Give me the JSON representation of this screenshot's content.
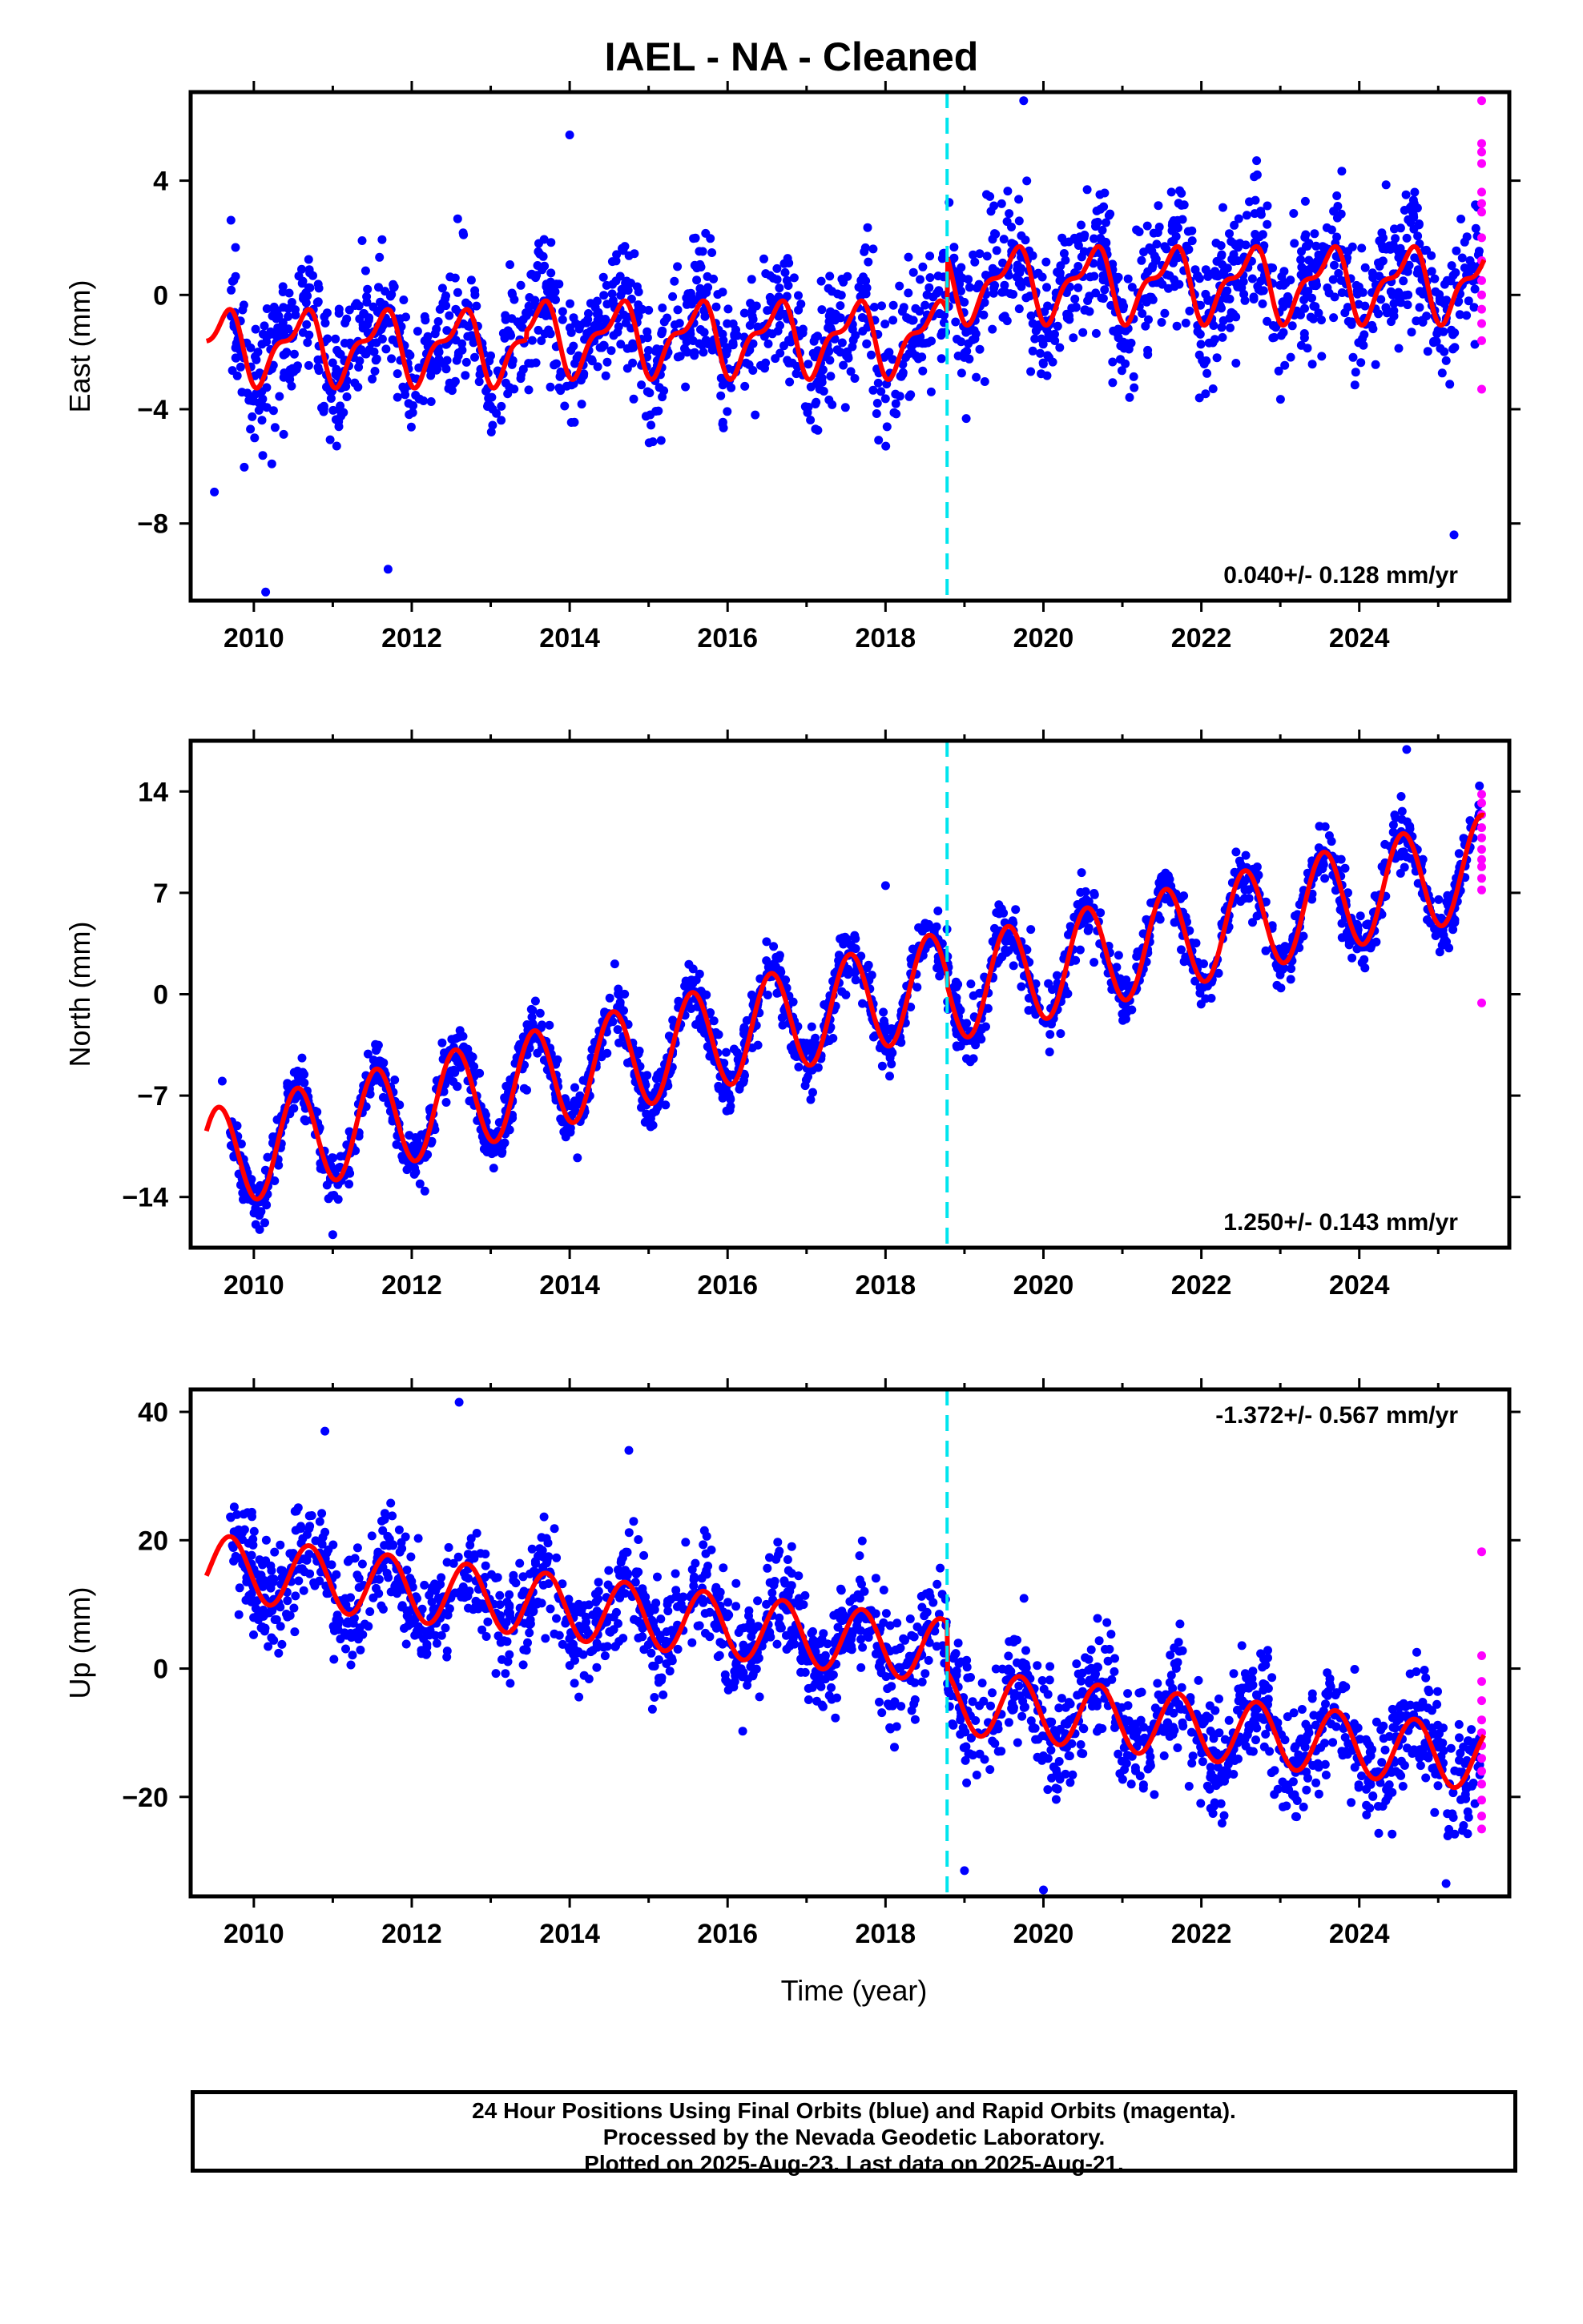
{
  "title": "IAEL  - NA - Cleaned",
  "colors": {
    "final": "#0000ff",
    "rapid": "#ff00ff",
    "model": "#ff0000",
    "break": "#00e5ee"
  },
  "footer": {
    "line1": "24 Hour Positions Using Final Orbits (blue) and Rapid Orbits (magenta).",
    "line2": "Processed by the Nevada Geodetic Laboratory.",
    "line3": "Plotted on 2025-Aug-23. Last data on 2025-Aug-21."
  },
  "chart_data": [
    {
      "type": "scatter",
      "component": "east",
      "ylabel": "East (mm)",
      "xlim": [
        2009.2,
        2025.9
      ],
      "ylim": [
        -10.7,
        7.1
      ],
      "yticks": [
        4,
        0,
        -4,
        -8
      ],
      "xticks": [
        2010,
        2012,
        2014,
        2016,
        2018,
        2020,
        2022,
        2024
      ],
      "rate_label": "0.040+/- 0.128 mm/yr",
      "rate_position": "bottom-right",
      "offset_epoch": 2018.78,
      "grid": false,
      "model": {
        "t_start": 2009.4,
        "t_end": 2025.58,
        "segments": [
          {
            "from": 2009.4,
            "to": 2013.45,
            "mean": -1.8
          },
          {
            "from": 2013.45,
            "to": 2018.78,
            "mean": -1.5
          },
          {
            "from": 2018.78,
            "to": 2025.58,
            "mean": 0.4
          }
        ],
        "annual_amplitude": 1.1,
        "annual_peak": 0.6,
        "semiannual_amplitude": 0.5,
        "semiannual_peak": 0.25
      },
      "scatter": {
        "noise": 1.15,
        "n": 2000
      },
      "outliers": [
        [
          2009.5,
          -6.9
        ],
        [
          2010.15,
          -10.4
        ],
        [
          2011.7,
          -9.6
        ],
        [
          2014.0,
          5.6
        ],
        [
          2016.35,
          -4.2
        ],
        [
          2019.75,
          6.8
        ],
        [
          2022.7,
          4.7
        ],
        [
          2025.2,
          -8.4
        ]
      ],
      "rapid": {
        "t": 2025.55,
        "values": [
          6.8,
          5.3,
          5.0,
          4.6,
          3.6,
          3.2,
          2.9,
          2.0,
          1.2,
          0.5,
          0.0,
          -0.5,
          -1.0,
          -1.6,
          -3.3
        ]
      }
    },
    {
      "type": "scatter",
      "component": "north",
      "ylabel": "North (mm)",
      "xlim": [
        2009.2,
        2025.9
      ],
      "ylim": [
        -17.5,
        17.5
      ],
      "yticks": [
        14,
        7,
        0,
        -7,
        -14
      ],
      "xticks": [
        2010,
        2012,
        2014,
        2016,
        2018,
        2020,
        2022,
        2024
      ],
      "rate_label": "1.250+/- 0.143 mm/yr",
      "rate_position": "bottom-right",
      "offset_epoch": 2018.78,
      "grid": false,
      "model": {
        "t_start": 2009.4,
        "t_end": 2025.58,
        "segments": [
          {
            "from": 2009.4,
            "to": 2018.78,
            "intercept": -11.5,
            "ref": 2009.4,
            "slope": 1.32
          },
          {
            "from": 2018.78,
            "to": 2025.58,
            "intercept": 0.2,
            "ref": 2018.78,
            "slope": 1.28
          }
        ],
        "annual_amplitude": 3.5,
        "annual_peak": 0.55,
        "semiannual_amplitude": 0.0,
        "semiannual_peak": 0.0
      },
      "scatter": {
        "noise": 1.0,
        "n": 2000
      },
      "outliers": [
        [
          2009.6,
          -6.0
        ],
        [
          2011.0,
          -16.6
        ],
        [
          2018.0,
          7.5
        ],
        [
          2024.6,
          16.9
        ]
      ],
      "rapid": {
        "t": 2025.55,
        "values": [
          13.8,
          13.2,
          12.4,
          11.5,
          10.8,
          10.0,
          9.3,
          8.8,
          8.0,
          7.2,
          -0.6
        ]
      }
    },
    {
      "type": "scatter",
      "component": "up",
      "ylabel": "Up (mm)",
      "xlabel": "Time (year)",
      "xlim": [
        2009.2,
        2025.9
      ],
      "ylim": [
        -35.5,
        43.5
      ],
      "yticks": [
        40,
        20,
        0,
        -20
      ],
      "xticks": [
        2010,
        2012,
        2014,
        2016,
        2018,
        2020,
        2022,
        2024
      ],
      "rate_label": "-1.372+/- 0.567 mm/yr",
      "rate_position": "top-right",
      "offset_epoch": 2018.78,
      "grid": false,
      "model": {
        "t_start": 2009.4,
        "t_end": 2025.58,
        "segments": [
          {
            "from": 2009.4,
            "to": 2018.78,
            "intercept": 16.0,
            "ref": 2009.4,
            "slope": -1.42
          },
          {
            "from": 2018.78,
            "to": 2025.58,
            "intercept": -5.0,
            "ref": 2018.78,
            "slope": -1.33
          }
        ],
        "annual_amplitude": 5.0,
        "annual_peak": 0.7,
        "semiannual_amplitude": 0.0,
        "semiannual_peak": 0.0
      },
      "scatter": {
        "noise": 4.2,
        "n": 2000
      },
      "outliers": [
        [
          2010.9,
          37.0
        ],
        [
          2012.6,
          41.5
        ],
        [
          2014.75,
          34.0
        ],
        [
          2019.0,
          -31.5
        ],
        [
          2020.0,
          -34.5
        ],
        [
          2025.1,
          -33.5
        ]
      ],
      "rapid": {
        "t": 2025.55,
        "values": [
          18.2,
          2.0,
          -2.0,
          -5.0,
          -8.0,
          -10.0,
          -12.0,
          -14.0,
          -16.0,
          -18.0,
          -20.5,
          -23.0,
          -25.0
        ]
      }
    }
  ]
}
